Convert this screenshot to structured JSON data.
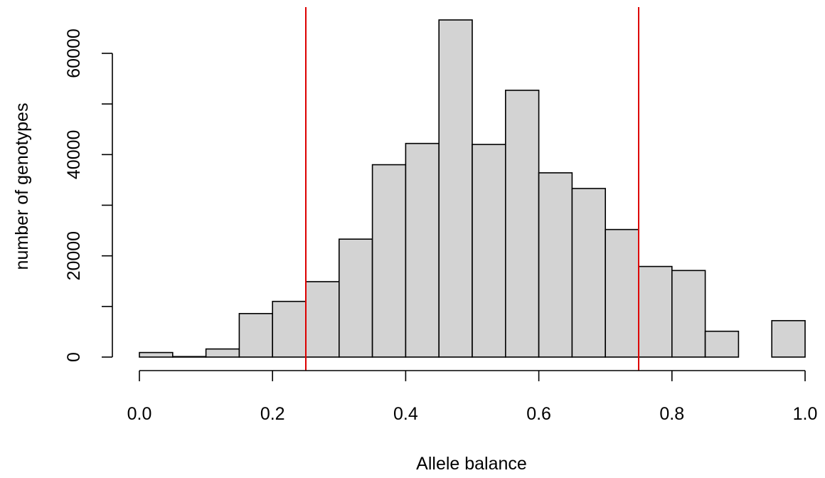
{
  "chart_data": {
    "type": "bar",
    "title": "",
    "xlabel": "Allele balance",
    "ylabel": "number of genotypes",
    "bin_edges": [
      0.0,
      0.05,
      0.1,
      0.15,
      0.2,
      0.25,
      0.3,
      0.35,
      0.4,
      0.45,
      0.5,
      0.55,
      0.6,
      0.65,
      0.7,
      0.75,
      0.8,
      0.85,
      0.9,
      0.95,
      1.0
    ],
    "values": [
      900,
      100,
      1600,
      8600,
      11000,
      14900,
      23300,
      38000,
      42200,
      66600,
      42000,
      52700,
      36400,
      33300,
      25200,
      17900,
      17100,
      5100,
      0,
      7200
    ],
    "xlim": [
      0,
      1
    ],
    "ylim": [
      0,
      60000
    ],
    "x_ticks": [
      "0.0",
      "0.2",
      "0.4",
      "0.6",
      "0.8",
      "1.0"
    ],
    "x_tick_values": [
      0,
      0.2,
      0.4,
      0.6,
      0.8,
      1.0
    ],
    "y_ticks": [
      "0",
      "20000",
      "40000",
      "60000"
    ],
    "y_tick_values": [
      0,
      20000,
      40000,
      60000
    ],
    "y_minor_tick_values": [
      10000,
      30000,
      50000
    ],
    "reference_lines": [
      0.25,
      0.75
    ],
    "bar_fill": "#d3d3d3",
    "bar_stroke": "#000000",
    "reference_line_color": "#dd0000",
    "grid": false,
    "legend": "none"
  }
}
